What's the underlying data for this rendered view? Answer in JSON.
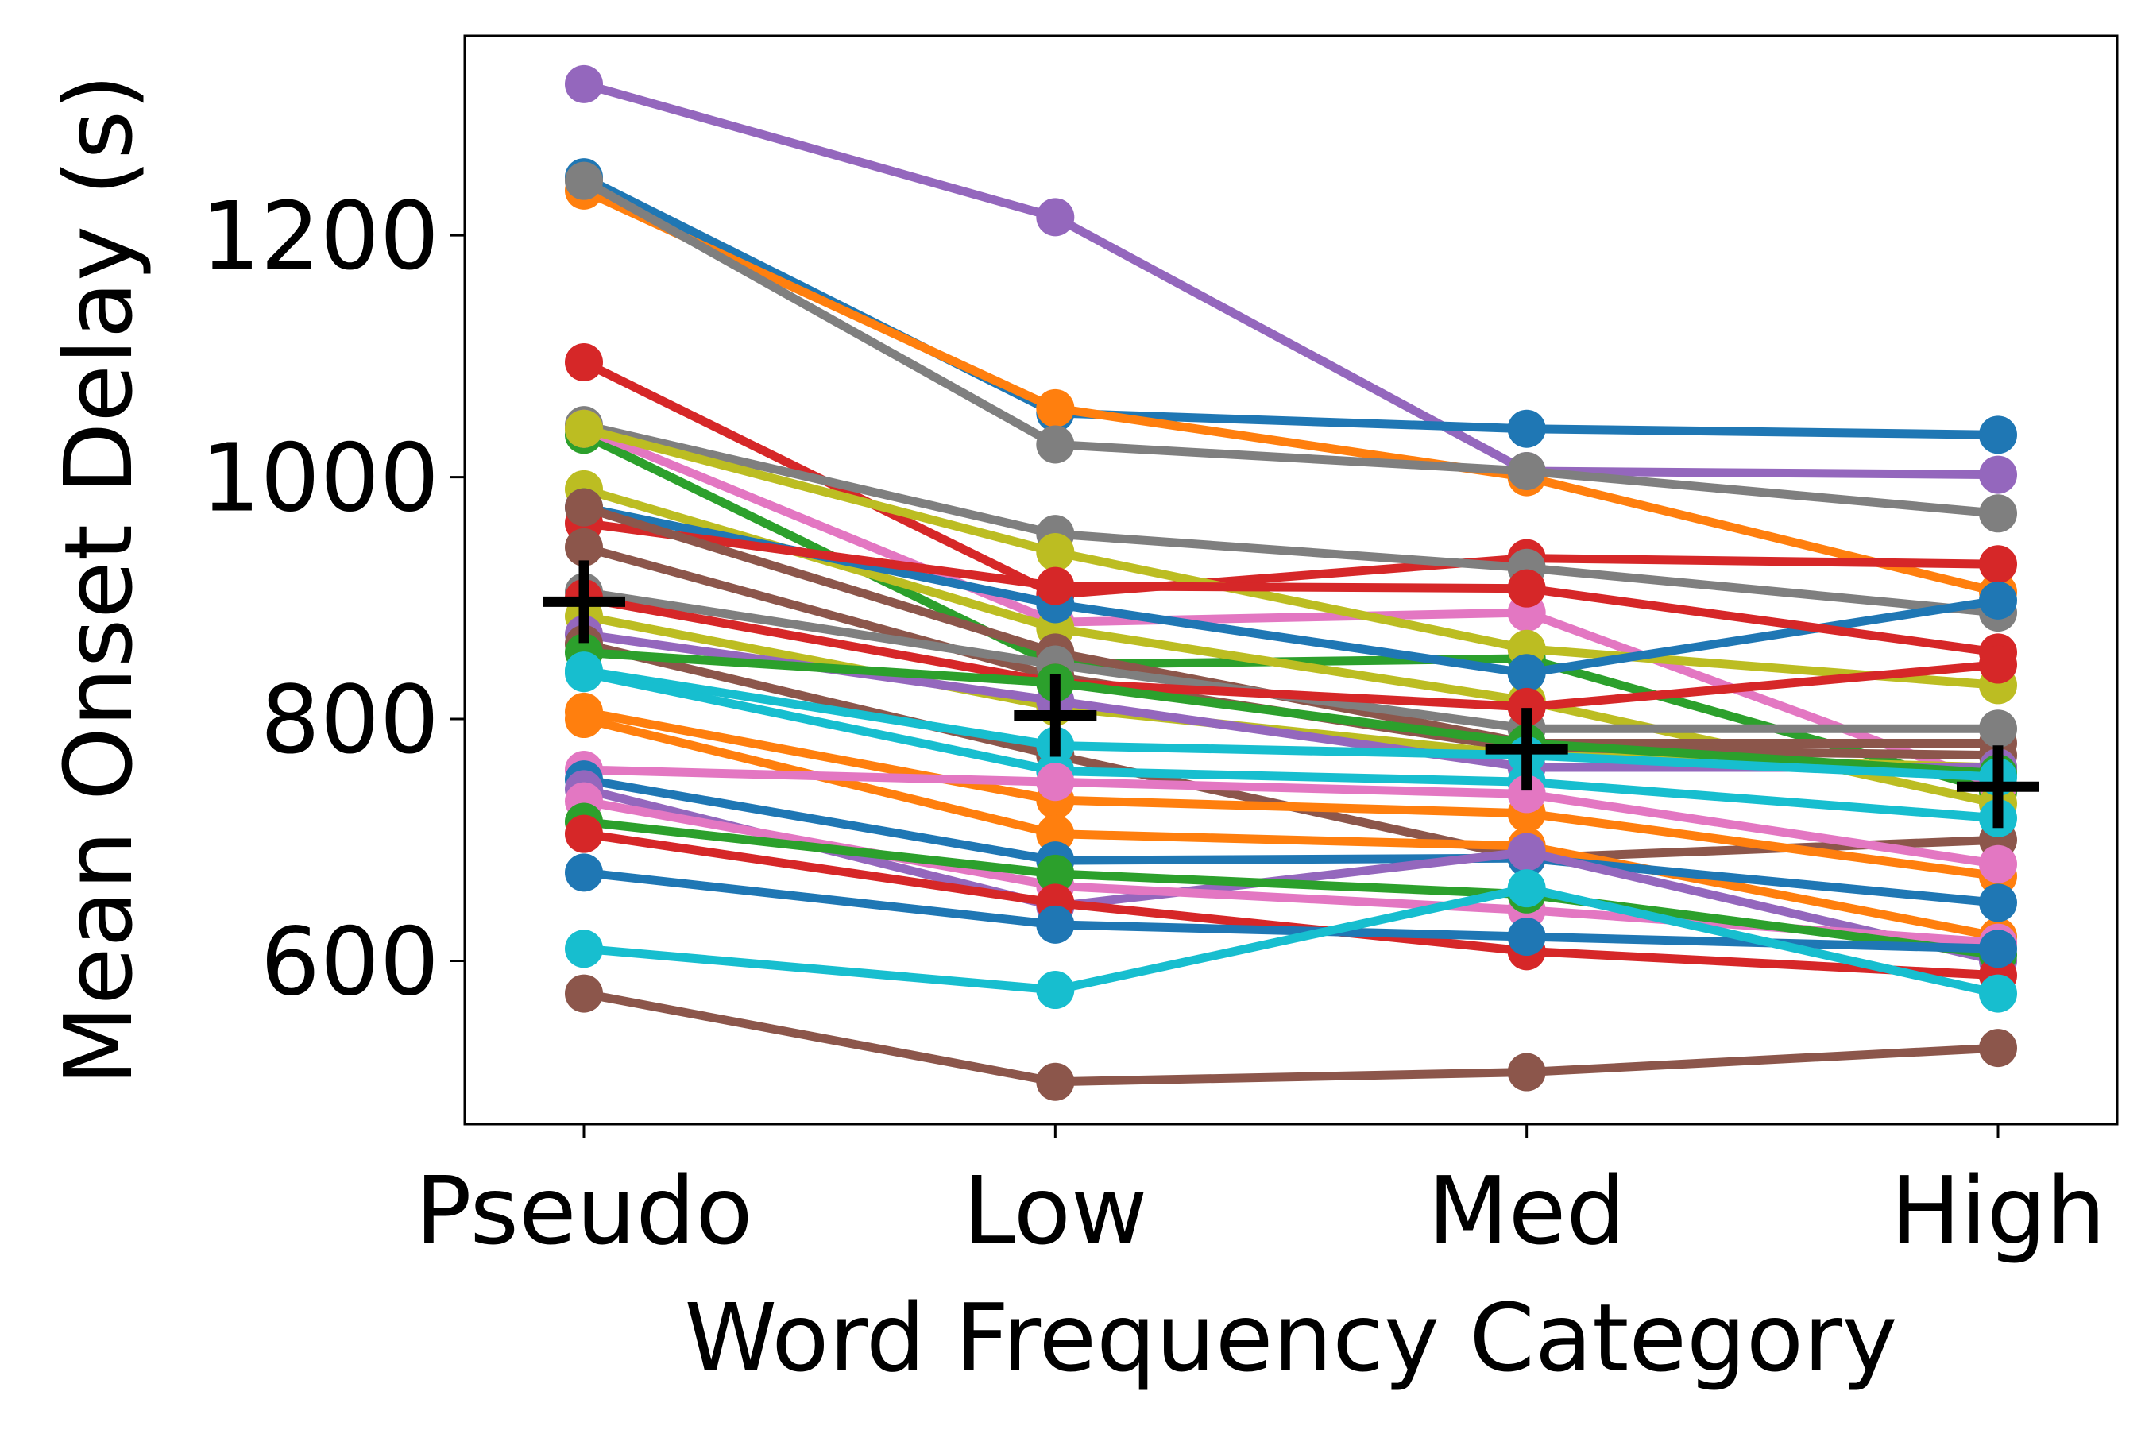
{
  "chart_data": {
    "type": "line",
    "xlabel": "Word Frequency Category",
    "ylabel": "Mean Onset Delay (s)",
    "categories": [
      "Pseudo",
      "Low",
      "Med",
      "High"
    ],
    "ylim": [
      465,
      1365
    ],
    "yticks": [
      600,
      800,
      1000,
      1200
    ],
    "grid": false,
    "legend": "none",
    "series": [
      {
        "color": "#9467bd",
        "values": [
          1325,
          1215,
          1005,
          1002
        ]
      },
      {
        "color": "#1f77b4",
        "values": [
          1248,
          1053,
          1040,
          1035
        ]
      },
      {
        "color": "#ff7f0e",
        "values": [
          1237,
          1057,
          1000,
          905
        ]
      },
      {
        "color": "#7f7f7f",
        "values": [
          1245,
          1027,
          1005,
          970
        ]
      },
      {
        "color": "#d62728",
        "values": [
          1095,
          903,
          933,
          928
        ]
      },
      {
        "color": "#7f7f7f",
        "values": [
          1043,
          953,
          925,
          888
        ]
      },
      {
        "color": "#2ca02c",
        "values": [
          1035,
          845,
          850,
          740
        ]
      },
      {
        "color": "#e377c2",
        "values": [
          1040,
          880,
          888,
          745
        ]
      },
      {
        "color": "#bcbd22",
        "values": [
          1040,
          938,
          858,
          828
        ]
      },
      {
        "color": "#bcbd22",
        "values": [
          990,
          875,
          815,
          730
        ]
      },
      {
        "color": "#1f77b4",
        "values": [
          975,
          895,
          838,
          898
        ]
      },
      {
        "color": "#d62728",
        "values": [
          962,
          910,
          908,
          855
        ]
      },
      {
        "color": "#8c564b",
        "values": [
          975,
          855,
          780,
          780
        ]
      },
      {
        "color": "#8c564b",
        "values": [
          942,
          835,
          775,
          770
        ]
      },
      {
        "color": "#7f7f7f",
        "values": [
          905,
          845,
          792,
          792
        ]
      },
      {
        "color": "#d62728",
        "values": [
          900,
          830,
          810,
          845
        ]
      },
      {
        "color": "#bcbd22",
        "values": [
          885,
          810,
          770,
          760
        ]
      },
      {
        "color": "#9467bd",
        "values": [
          870,
          815,
          760,
          760
        ]
      },
      {
        "color": "#8c564b",
        "values": [
          862,
          770,
          685,
          700
        ]
      },
      {
        "color": "#2ca02c",
        "values": [
          855,
          830,
          780,
          755
        ]
      },
      {
        "color": "#17becf",
        "values": [
          840,
          778,
          770,
          752
        ]
      },
      {
        "color": "#17becf",
        "values": [
          838,
          757,
          748,
          718
        ]
      },
      {
        "color": "#ff7f0e",
        "values": [
          806,
          733,
          722,
          670
        ]
      },
      {
        "color": "#ff7f0e",
        "values": [
          800,
          705,
          695,
          620
        ]
      },
      {
        "color": "#e377c2",
        "values": [
          758,
          748,
          738,
          680
        ]
      },
      {
        "color": "#1f77b4",
        "values": [
          750,
          683,
          685,
          648
        ]
      },
      {
        "color": "#9467bd",
        "values": [
          742,
          645,
          690,
          600
        ]
      },
      {
        "color": "#e377c2",
        "values": [
          732,
          662,
          642,
          615
        ]
      },
      {
        "color": "#2ca02c",
        "values": [
          715,
          672,
          655,
          605
        ]
      },
      {
        "color": "#d62728",
        "values": [
          705,
          648,
          608,
          588
        ]
      },
      {
        "color": "#1f77b4",
        "values": [
          673,
          630,
          620,
          610
        ]
      },
      {
        "color": "#17becf",
        "values": [
          610,
          576,
          660,
          573
        ]
      },
      {
        "color": "#8c564b",
        "values": [
          573,
          500,
          508,
          528
        ]
      }
    ],
    "mean_marker": {
      "symbol": "+",
      "color": "#000000",
      "values": [
        897,
        803,
        775,
        744
      ]
    }
  }
}
